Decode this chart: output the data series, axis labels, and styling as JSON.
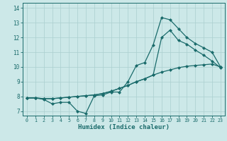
{
  "xlabel": "Humidex (Indice chaleur)",
  "bg_color": "#cce8e8",
  "grid_color": "#aacfcf",
  "line_color": "#1a6b6b",
  "xlim": [
    -0.5,
    23.5
  ],
  "ylim": [
    6.7,
    14.35
  ],
  "xticks": [
    0,
    1,
    2,
    3,
    4,
    5,
    6,
    7,
    8,
    9,
    10,
    11,
    12,
    13,
    14,
    15,
    16,
    17,
    18,
    19,
    20,
    21,
    22,
    23
  ],
  "yticks": [
    7,
    8,
    9,
    10,
    11,
    12,
    13,
    14
  ],
  "line1_x": [
    0,
    1,
    2,
    3,
    4,
    5,
    6,
    7,
    8,
    9,
    10,
    11,
    12,
    13,
    14,
    15,
    16,
    17,
    18,
    19,
    20,
    21,
    22,
    23
  ],
  "line1_y": [
    7.9,
    7.9,
    7.8,
    7.5,
    7.6,
    7.6,
    7.0,
    6.85,
    8.05,
    8.1,
    8.3,
    8.3,
    9.0,
    10.1,
    10.3,
    11.5,
    13.35,
    13.2,
    12.6,
    12.0,
    11.6,
    11.3,
    11.0,
    10.0
  ],
  "line2_x": [
    0,
    1,
    2,
    3,
    4,
    5,
    6,
    7,
    8,
    9,
    10,
    11,
    12,
    13,
    14,
    15,
    16,
    17,
    18,
    19,
    20,
    21,
    22,
    23
  ],
  "line2_y": [
    7.9,
    7.9,
    7.85,
    7.85,
    7.9,
    7.95,
    8.0,
    8.05,
    8.1,
    8.2,
    8.35,
    8.55,
    8.75,
    9.0,
    9.2,
    9.45,
    9.65,
    9.8,
    9.95,
    10.05,
    10.1,
    10.15,
    10.2,
    10.0
  ],
  "line3_x": [
    0,
    1,
    2,
    3,
    4,
    5,
    6,
    7,
    8,
    9,
    10,
    11,
    12,
    13,
    14,
    15,
    16,
    17,
    18,
    19,
    20,
    21,
    22,
    23
  ],
  "line3_y": [
    7.9,
    7.9,
    7.85,
    7.85,
    7.9,
    7.95,
    8.0,
    8.05,
    8.1,
    8.2,
    8.35,
    8.55,
    8.75,
    9.0,
    9.2,
    9.45,
    12.0,
    12.5,
    11.8,
    11.55,
    11.15,
    10.8,
    10.4,
    9.95
  ]
}
